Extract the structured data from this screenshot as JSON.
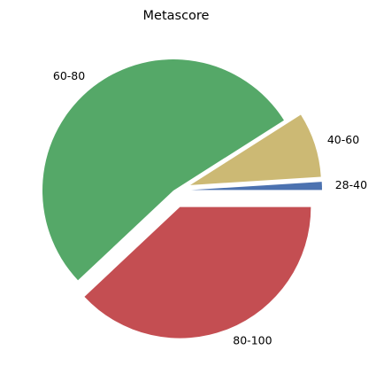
{
  "chart_data": {
    "type": "pie",
    "title": "Metascore",
    "categories": [
      "28-40",
      "40-60",
      "60-80",
      "80-100"
    ],
    "values": [
      1,
      8,
      53,
      38
    ],
    "colors": [
      "#4c72b0",
      "#ccb974",
      "#55a868",
      "#c44e52"
    ],
    "exploded": [
      "28-40",
      "40-60",
      "80-100"
    ],
    "start_angle_deg": 0,
    "direction": "counterclockwise",
    "legend": "none"
  }
}
